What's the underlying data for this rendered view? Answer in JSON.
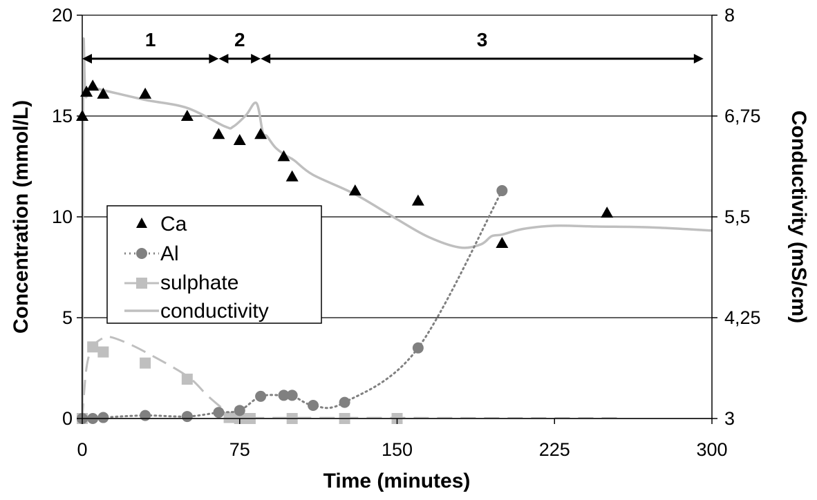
{
  "chart_data": {
    "type": "scatter",
    "xlabel": "Time (minutes)",
    "ylabel": "Concentration (mmol/L)",
    "y2label": "Conductivity (mS/cm)",
    "xlim": [
      0,
      300
    ],
    "ylim": [
      0,
      20
    ],
    "y2lim": [
      3,
      8
    ],
    "x_ticks": [
      "0",
      "75",
      "150",
      "225",
      "300"
    ],
    "y_ticks": [
      "0",
      "5",
      "10",
      "15",
      "20"
    ],
    "y2_ticks": [
      "3",
      "4,25",
      "5,5",
      "6,75",
      "8"
    ],
    "grid": true,
    "legend_position": "center-left",
    "phases": [
      {
        "label": "1",
        "start": 0,
        "end": 65
      },
      {
        "label": "2",
        "start": 65,
        "end": 85
      },
      {
        "label": "3",
        "start": 85,
        "end": 296
      }
    ],
    "series": [
      {
        "name": "Ca",
        "axis": "left",
        "marker": "triangle",
        "color": "#000000",
        "points": [
          [
            0,
            15.0
          ],
          [
            2,
            16.2
          ],
          [
            5,
            16.5
          ],
          [
            10,
            16.1
          ],
          [
            30,
            16.1
          ],
          [
            50,
            15.0
          ],
          [
            65,
            14.1
          ],
          [
            75,
            13.8
          ],
          [
            85,
            14.1
          ],
          [
            96,
            13.0
          ],
          [
            100,
            12.0
          ],
          [
            130,
            11.3
          ],
          [
            160,
            10.8
          ],
          [
            200,
            8.7
          ],
          [
            250,
            10.2
          ]
        ]
      },
      {
        "name": "Al",
        "axis": "left",
        "marker": "circle",
        "color": "#808080",
        "line": "dotted",
        "points": [
          [
            0,
            0.0
          ],
          [
            5,
            0.0
          ],
          [
            10,
            0.05
          ],
          [
            30,
            0.15
          ],
          [
            50,
            0.1
          ],
          [
            65,
            0.3
          ],
          [
            75,
            0.4
          ],
          [
            85,
            1.1
          ],
          [
            96,
            1.15
          ],
          [
            100,
            1.15
          ],
          [
            110,
            0.65
          ],
          [
            125,
            0.8
          ],
          [
            160,
            3.5
          ],
          [
            200,
            11.3
          ]
        ]
      },
      {
        "name": "sulphate",
        "axis": "left",
        "marker": "square",
        "color": "#bfbfbf",
        "line": "dashed",
        "points": [
          [
            0,
            0.0
          ],
          [
            5,
            3.55
          ],
          [
            10,
            3.3
          ],
          [
            30,
            2.75
          ],
          [
            50,
            1.95
          ],
          [
            70,
            0.05
          ],
          [
            75,
            0.0
          ],
          [
            80,
            0.0
          ],
          [
            100,
            0.0
          ],
          [
            125,
            0.0
          ],
          [
            150,
            0.0
          ]
        ],
        "curve": [
          [
            0,
            0
          ],
          [
            2,
            2.5
          ],
          [
            5,
            3.55
          ],
          [
            10,
            4.0
          ],
          [
            13,
            4.05
          ],
          [
            20,
            3.8
          ],
          [
            30,
            3.3
          ],
          [
            50,
            2.1
          ],
          [
            60,
            1.1
          ],
          [
            70,
            0.25
          ],
          [
            75,
            0.05
          ],
          [
            100,
            0.03
          ],
          [
            150,
            0.03
          ],
          [
            200,
            0.02
          ],
          [
            255,
            0.02
          ]
        ]
      },
      {
        "name": "conductivity",
        "axis": "right",
        "color": "#bfbfbf",
        "line": "solid",
        "points": [
          [
            0,
            3.05
          ],
          [
            0.5,
            7.5
          ],
          [
            1.5,
            7.0
          ],
          [
            4,
            7.1
          ],
          [
            10,
            7.07
          ],
          [
            30,
            6.95
          ],
          [
            50,
            6.85
          ],
          [
            68,
            6.62
          ],
          [
            72,
            6.62
          ],
          [
            78,
            6.76
          ],
          [
            83,
            6.91
          ],
          [
            86,
            6.55
          ],
          [
            88,
            6.5
          ],
          [
            92,
            6.36
          ],
          [
            97,
            6.26
          ],
          [
            101,
            6.2
          ],
          [
            110,
            6.02
          ],
          [
            130,
            5.78
          ],
          [
            150,
            5.47
          ],
          [
            165,
            5.25
          ],
          [
            180,
            5.12
          ],
          [
            190,
            5.16
          ],
          [
            195,
            5.26
          ],
          [
            200,
            5.28
          ],
          [
            210,
            5.35
          ],
          [
            225,
            5.39
          ],
          [
            245,
            5.38
          ],
          [
            270,
            5.37
          ],
          [
            300,
            5.33
          ]
        ]
      }
    ]
  }
}
